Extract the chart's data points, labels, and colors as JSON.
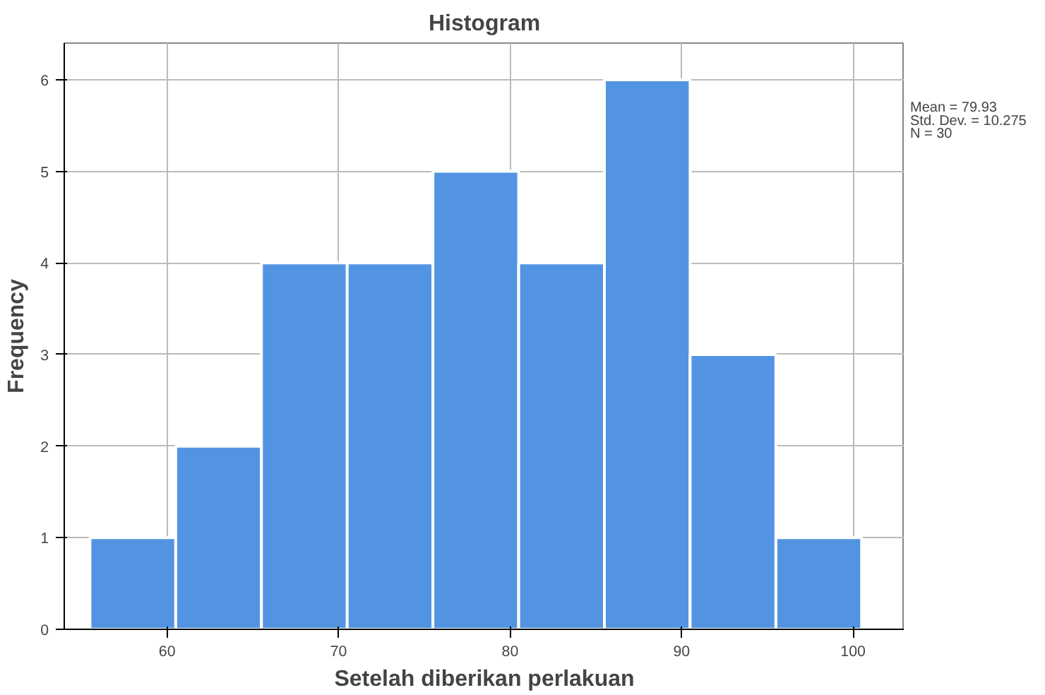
{
  "chart_data": {
    "type": "histogram",
    "title": "Histogram",
    "xlabel": "Setelah diberikan perlakuan",
    "ylabel": "Frequency",
    "bins": [
      55.5,
      60.5,
      65.5,
      70.5,
      75.5,
      80.5,
      85.5,
      90.5,
      95.5,
      100.5
    ],
    "values": [
      1,
      2,
      4,
      4,
      5,
      4,
      6,
      3,
      1
    ],
    "color": "#5294e2",
    "xlim": [
      54,
      103
    ],
    "ylim": [
      0,
      6.4
    ],
    "xticks": [
      60,
      70,
      80,
      90,
      100
    ],
    "yticks": [
      0,
      1,
      2,
      3,
      4,
      5,
      6
    ],
    "grid": true,
    "annotations": [
      "Mean = 79.93",
      "Std. Dev. = 10.275",
      "N = 30"
    ]
  }
}
